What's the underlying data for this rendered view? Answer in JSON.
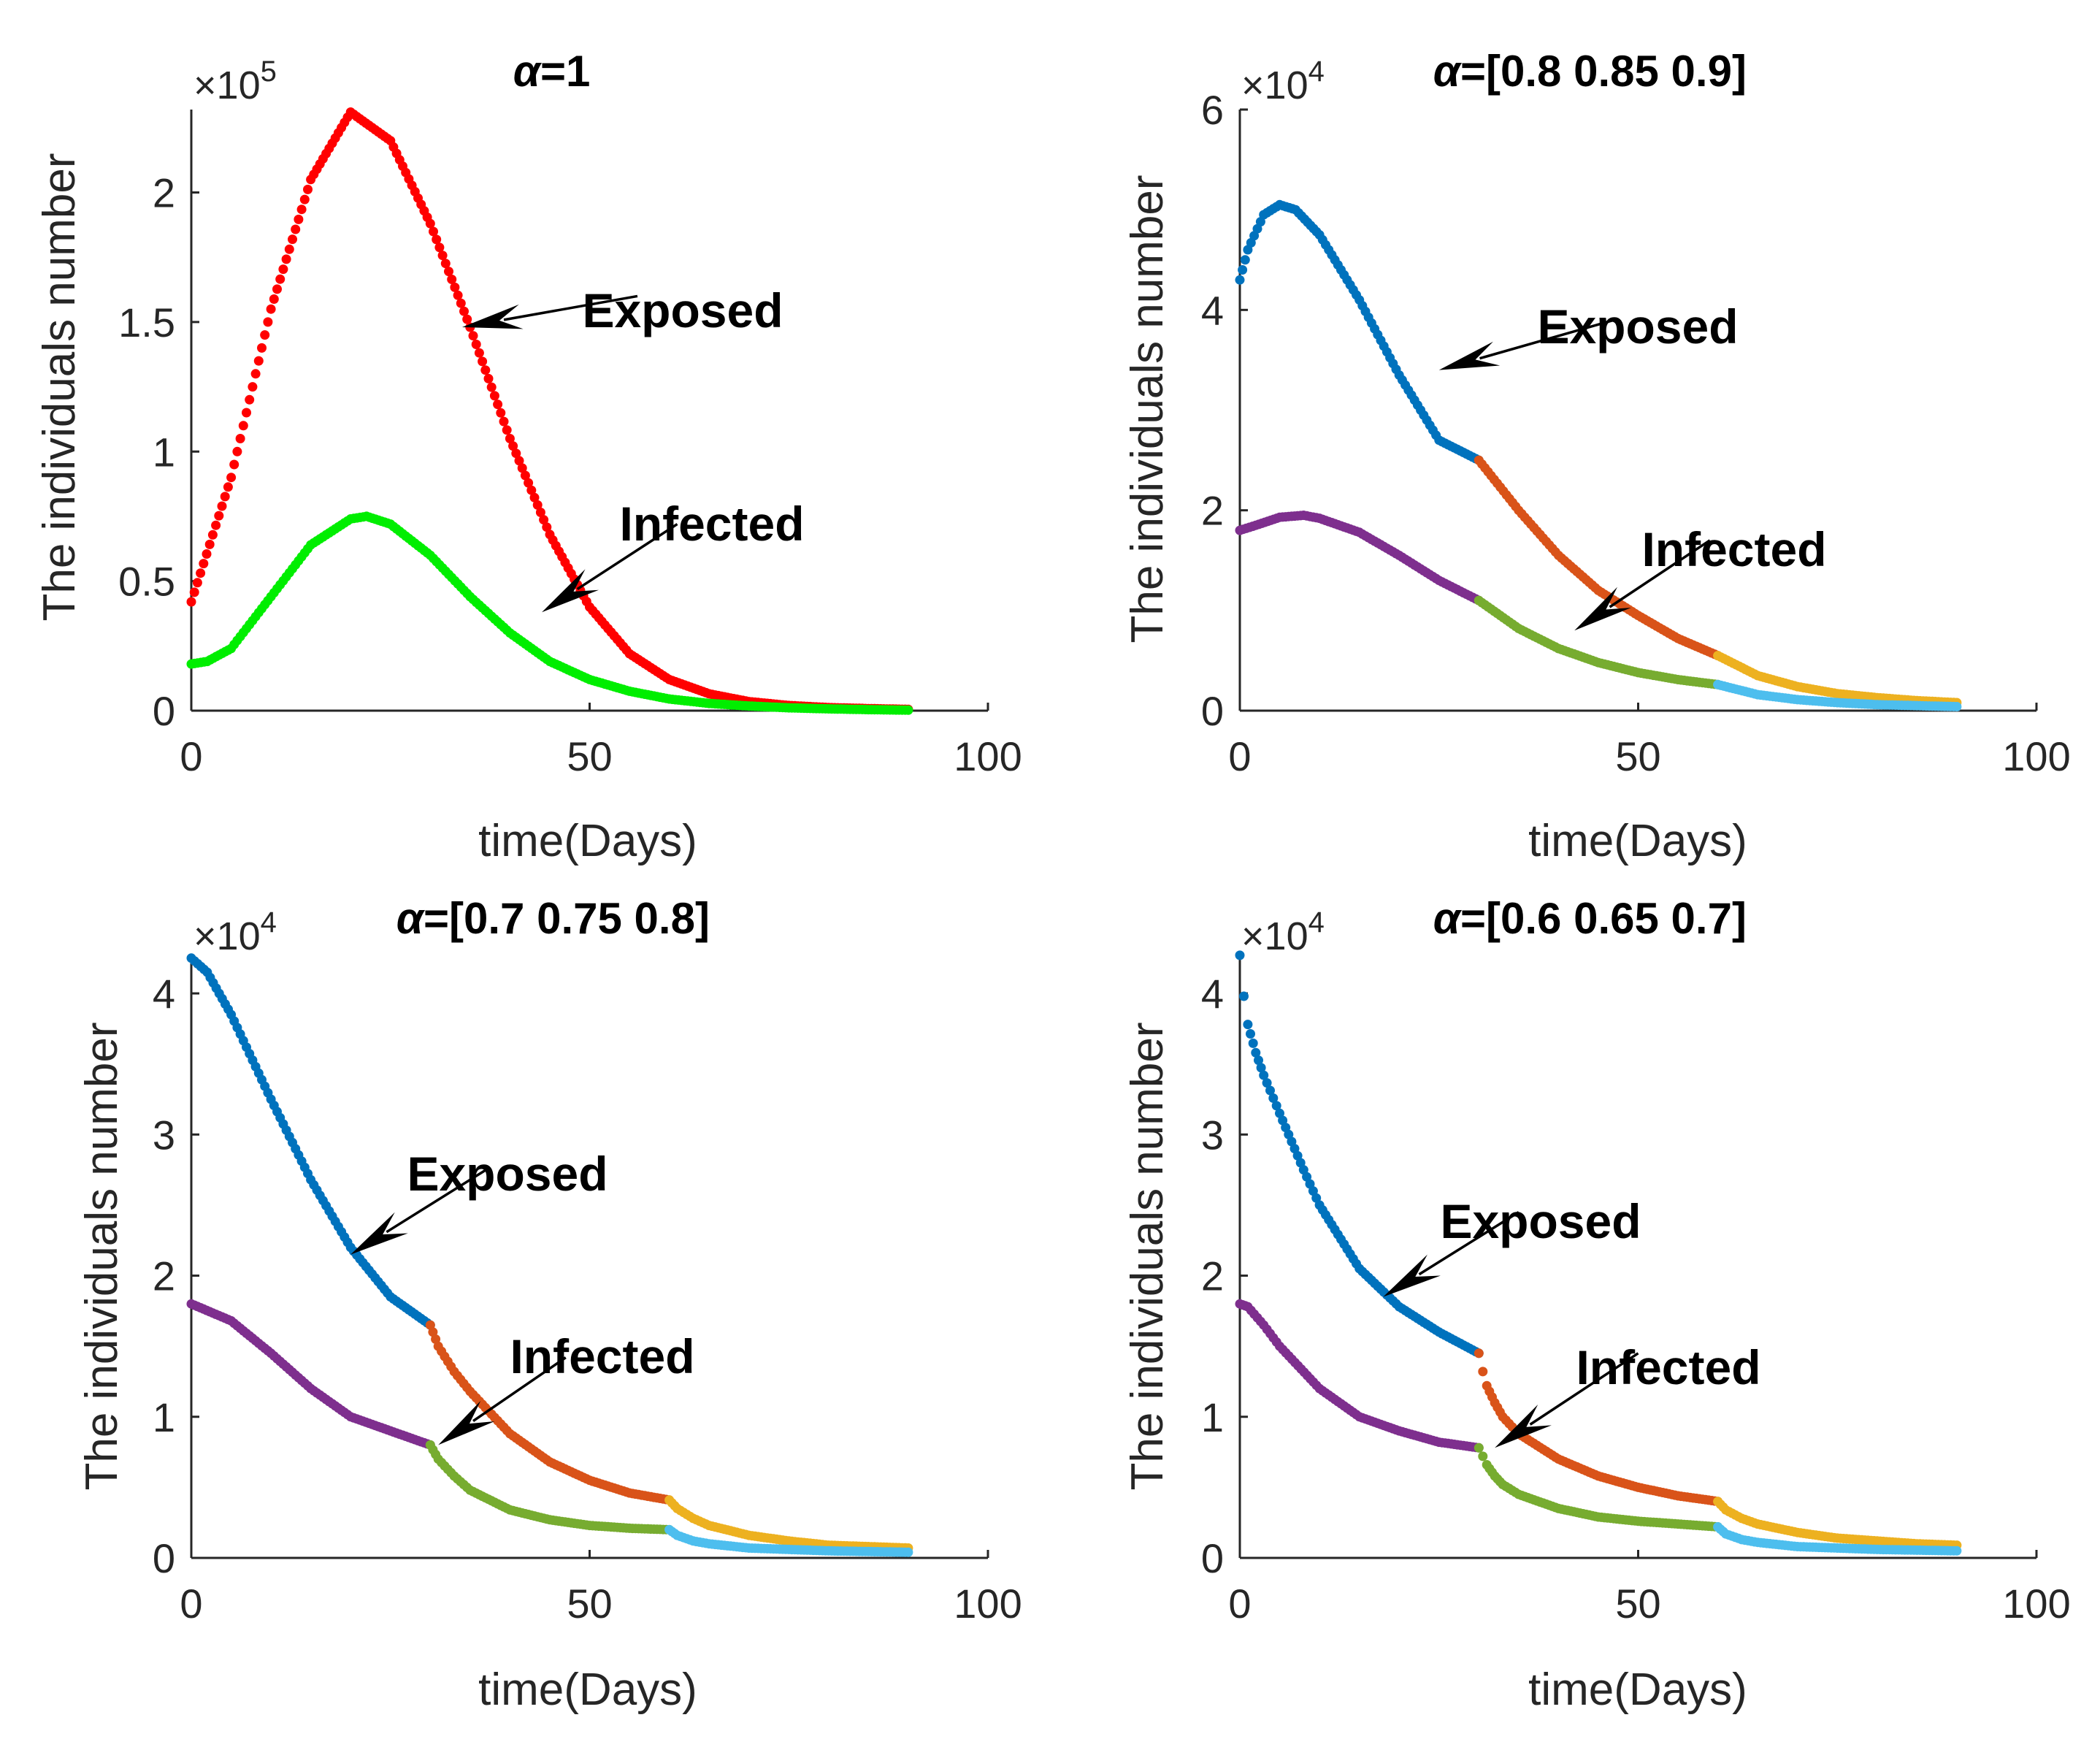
{
  "chart_data": [
    {
      "type": "scatter",
      "title_symbol": "α",
      "title_value": "=1",
      "xlabel": "time(Days)",
      "ylabel": "The individuals number",
      "multiplier": "×10",
      "exponent": "5",
      "xlim": [
        0,
        100
      ],
      "ylim": [
        0,
        2.32
      ],
      "xticks": [
        0,
        50,
        100
      ],
      "xtick_labels": [
        "0",
        "50",
        "100"
      ],
      "yticks": [
        0,
        0.5,
        1,
        1.5,
        2
      ],
      "ytick_labels": [
        "0",
        "0.5",
        "1",
        "1.5",
        "2"
      ],
      "series": [
        {
          "name": "Exposed",
          "color": "#ff0000",
          "x": [
            0,
            5,
            10,
            15,
            20,
            25,
            30,
            35,
            40,
            45,
            50,
            55,
            60,
            65,
            70,
            75,
            80,
            85,
            90
          ],
          "values": [
            0.42,
            0.9,
            1.55,
            2.05,
            2.31,
            2.2,
            1.88,
            1.48,
            1.05,
            0.68,
            0.4,
            0.22,
            0.12,
            0.065,
            0.035,
            0.02,
            0.012,
            0.008,
            0.005
          ]
        },
        {
          "name": "Infected",
          "color": "#00ee00",
          "x": [
            0,
            2,
            5,
            10,
            15,
            20,
            22,
            25,
            30,
            35,
            40,
            45,
            50,
            55,
            60,
            65,
            70,
            75,
            80,
            85,
            90
          ],
          "values": [
            0.18,
            0.19,
            0.24,
            0.44,
            0.64,
            0.74,
            0.75,
            0.72,
            0.6,
            0.44,
            0.3,
            0.19,
            0.12,
            0.075,
            0.045,
            0.028,
            0.018,
            0.011,
            0.007,
            0.004,
            0.002
          ]
        }
      ],
      "annotations": [
        {
          "text": "Exposed",
          "tail": [
            56,
            1.6
          ],
          "head": [
            34,
            1.48
          ]
        },
        {
          "text": "Infected",
          "tail": [
            61,
            0.72
          ],
          "head": [
            44,
            0.38
          ]
        }
      ]
    },
    {
      "type": "scatter",
      "title_symbol": "α",
      "title_value": "=[0.8 0.85 0.9]",
      "xlabel": "time(Days)",
      "ylabel": "The individuals number",
      "multiplier": "×10",
      "exponent": "4",
      "xlim": [
        0,
        100
      ],
      "ylim": [
        0,
        6
      ],
      "xticks": [
        0,
        50,
        100
      ],
      "xtick_labels": [
        "0",
        "50",
        "100"
      ],
      "yticks": [
        0,
        2,
        4,
        6
      ],
      "ytick_labels": [
        "0",
        "2",
        "4",
        "6"
      ],
      "series": [
        {
          "name": "Exposed",
          "color": "#0072bd",
          "x": [
            0,
            1,
            3,
            5,
            7,
            10,
            15,
            20,
            25,
            30
          ],
          "values": [
            4.3,
            4.6,
            4.95,
            5.05,
            5.0,
            4.75,
            4.1,
            3.35,
            2.7,
            2.5
          ]
        },
        {
          "name": "Exposed",
          "color": "#d95319",
          "x": [
            30,
            35,
            40,
            45,
            50,
            55,
            60
          ],
          "values": [
            2.5,
            2.0,
            1.55,
            1.2,
            0.95,
            0.72,
            0.55
          ]
        },
        {
          "name": "Exposed",
          "color": "#edb120",
          "x": [
            60,
            65,
            70,
            75,
            80,
            85,
            90
          ],
          "values": [
            0.55,
            0.35,
            0.24,
            0.17,
            0.13,
            0.1,
            0.08
          ]
        },
        {
          "name": "Infected",
          "color": "#7e2f8e",
          "x": [
            0,
            2,
            5,
            8,
            10,
            15,
            20,
            25,
            30
          ],
          "values": [
            1.8,
            1.85,
            1.93,
            1.95,
            1.92,
            1.78,
            1.55,
            1.3,
            1.1
          ]
        },
        {
          "name": "Infected",
          "color": "#77ac30",
          "x": [
            30,
            35,
            40,
            45,
            50,
            55,
            60
          ],
          "values": [
            1.1,
            0.82,
            0.62,
            0.48,
            0.38,
            0.31,
            0.26
          ]
        },
        {
          "name": "Infected",
          "color": "#4dbeee",
          "x": [
            60,
            65,
            70,
            75,
            80,
            85,
            90
          ],
          "values": [
            0.26,
            0.16,
            0.11,
            0.08,
            0.06,
            0.05,
            0.04
          ]
        }
      ],
      "annotations": [
        {
          "text": "Exposed",
          "tail": [
            47,
            3.9
          ],
          "head": [
            25,
            3.4
          ]
        },
        {
          "text": "Infected",
          "tail": [
            59,
            1.7
          ],
          "head": [
            42,
            0.8
          ]
        }
      ]
    },
    {
      "type": "scatter",
      "title_symbol": "α",
      "title_value": "=[0.7 0.75 0.8]",
      "xlabel": "time(Days)",
      "ylabel": "The individuals number",
      "multiplier": "×10",
      "exponent": "4",
      "xlim": [
        0,
        100
      ],
      "ylim": [
        0,
        4.28
      ],
      "xticks": [
        0,
        50,
        100
      ],
      "xtick_labels": [
        "0",
        "50",
        "100"
      ],
      "yticks": [
        0,
        1,
        2,
        3,
        4
      ],
      "ytick_labels": [
        "0",
        "1",
        "2",
        "3",
        "4"
      ],
      "series": [
        {
          "name": "Exposed",
          "color": "#0072bd",
          "x": [
            0,
            2,
            5,
            10,
            15,
            20,
            25,
            30
          ],
          "values": [
            4.25,
            4.15,
            3.85,
            3.25,
            2.68,
            2.2,
            1.85,
            1.65
          ]
        },
        {
          "name": "Exposed",
          "color": "#d95319",
          "x": [
            30,
            31,
            33,
            35,
            40,
            45,
            50,
            55,
            60
          ],
          "values": [
            1.65,
            1.5,
            1.32,
            1.18,
            0.88,
            0.68,
            0.55,
            0.46,
            0.41
          ]
        },
        {
          "name": "Exposed",
          "color": "#edb120",
          "x": [
            60,
            61,
            63,
            65,
            70,
            75,
            80,
            85,
            90
          ],
          "values": [
            0.41,
            0.35,
            0.28,
            0.23,
            0.16,
            0.12,
            0.09,
            0.08,
            0.07
          ]
        },
        {
          "name": "Infected",
          "color": "#7e2f8e",
          "x": [
            0,
            5,
            10,
            15,
            20,
            25,
            30
          ],
          "values": [
            1.8,
            1.68,
            1.45,
            1.2,
            1.0,
            0.9,
            0.8
          ]
        },
        {
          "name": "Infected",
          "color": "#77ac30",
          "x": [
            30,
            31,
            33,
            35,
            40,
            45,
            50,
            55,
            60
          ],
          "values": [
            0.8,
            0.7,
            0.58,
            0.48,
            0.34,
            0.27,
            0.23,
            0.21,
            0.2
          ]
        },
        {
          "name": "Infected",
          "color": "#4dbeee",
          "x": [
            60,
            61,
            63,
            65,
            70,
            75,
            80,
            85,
            90
          ],
          "values": [
            0.2,
            0.16,
            0.12,
            0.1,
            0.07,
            0.06,
            0.05,
            0.045,
            0.04
          ]
        }
      ],
      "annotations": [
        {
          "text": "Exposed",
          "tail": [
            37,
            2.75
          ],
          "head": [
            20,
            2.15
          ]
        },
        {
          "text": "Infected",
          "tail": [
            47,
            1.42
          ],
          "head": [
            31,
            0.8
          ]
        }
      ]
    },
    {
      "type": "scatter",
      "title_symbol": "α",
      "title_value": "=[0.6 0.65 0.7]",
      "xlabel": "time(Days)",
      "ylabel": "The individuals number",
      "multiplier": "×10",
      "exponent": "4",
      "xlim": [
        0,
        100
      ],
      "ylim": [
        0,
        4.28
      ],
      "xticks": [
        0,
        50,
        100
      ],
      "xtick_labels": [
        "0",
        "50",
        "100"
      ],
      "yticks": [
        0,
        1,
        2,
        3,
        4
      ],
      "ytick_labels": [
        "0",
        "1",
        "2",
        "3",
        "4"
      ],
      "series": [
        {
          "name": "Exposed",
          "color": "#0072bd",
          "x": [
            0,
            0.5,
            1,
            2,
            3,
            5,
            8,
            10,
            15,
            20,
            25,
            30
          ],
          "values": [
            4.27,
            3.98,
            3.78,
            3.58,
            3.42,
            3.15,
            2.75,
            2.5,
            2.05,
            1.78,
            1.6,
            1.45
          ]
        },
        {
          "name": "Exposed",
          "color": "#d95319",
          "x": [
            30,
            30.5,
            31,
            32,
            33,
            35,
            40,
            45,
            50,
            55,
            60
          ],
          "values": [
            1.45,
            1.32,
            1.22,
            1.1,
            1.0,
            0.88,
            0.7,
            0.58,
            0.5,
            0.44,
            0.4
          ]
        },
        {
          "name": "Exposed",
          "color": "#edb120",
          "x": [
            60,
            61,
            63,
            65,
            70,
            75,
            80,
            85,
            90
          ],
          "values": [
            0.4,
            0.34,
            0.28,
            0.24,
            0.18,
            0.14,
            0.12,
            0.1,
            0.09
          ]
        },
        {
          "name": "Infected",
          "color": "#7e2f8e",
          "x": [
            0,
            1,
            3,
            5,
            10,
            15,
            20,
            25,
            30
          ],
          "values": [
            1.8,
            1.78,
            1.65,
            1.5,
            1.2,
            1.0,
            0.9,
            0.82,
            0.78
          ]
        },
        {
          "name": "Infected",
          "color": "#77ac30",
          "x": [
            30,
            30.5,
            31,
            32,
            33,
            35,
            40,
            45,
            50,
            55,
            60
          ],
          "values": [
            0.78,
            0.72,
            0.66,
            0.58,
            0.52,
            0.45,
            0.35,
            0.29,
            0.26,
            0.24,
            0.22
          ]
        },
        {
          "name": "Infected",
          "color": "#4dbeee",
          "x": [
            60,
            61,
            63,
            65,
            70,
            75,
            80,
            85,
            90
          ],
          "values": [
            0.22,
            0.17,
            0.13,
            0.11,
            0.08,
            0.07,
            0.06,
            0.055,
            0.05
          ]
        }
      ],
      "annotations": [
        {
          "text": "Exposed",
          "tail": [
            35,
            2.45
          ],
          "head": [
            18,
            1.85
          ]
        },
        {
          "text": "Infected",
          "tail": [
            50,
            1.45
          ],
          "head": [
            32,
            0.78
          ]
        }
      ]
    }
  ]
}
